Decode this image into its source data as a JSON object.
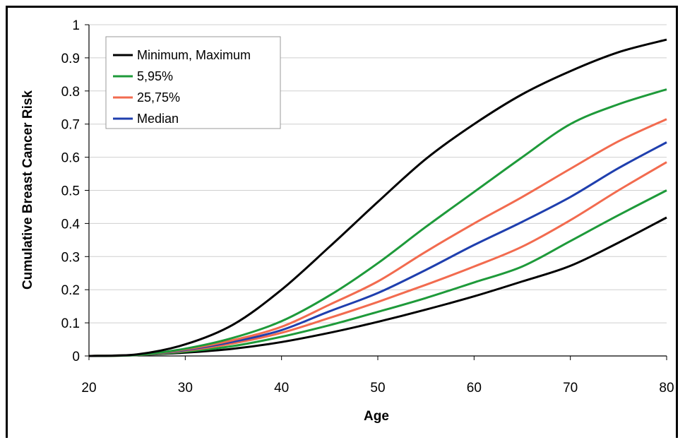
{
  "chart_data": {
    "type": "line",
    "title": "",
    "xlabel": "Age",
    "ylabel": "Cumulative Breast Cancer Risk",
    "xlim": [
      20,
      80
    ],
    "ylim": [
      0,
      1
    ],
    "x_ticks": [
      20,
      30,
      40,
      50,
      60,
      70,
      80
    ],
    "y_ticks": [
      0,
      0.1,
      0.2,
      0.3,
      0.4,
      0.5,
      0.6,
      0.7,
      0.8,
      0.9,
      1
    ],
    "grid": "horizontal",
    "legend_position": "top-left",
    "legend": [
      {
        "label": "Minimum, Maximum",
        "color": "#000000"
      },
      {
        "label": "5,95%",
        "color": "#1e9a3a"
      },
      {
        "label": "25,75%",
        "color": "#f26b4f"
      },
      {
        "label": "Median",
        "color": "#1f3fae"
      }
    ],
    "x": [
      20,
      25,
      30,
      35,
      40,
      45,
      50,
      55,
      60,
      65,
      70,
      75,
      80
    ],
    "series": [
      {
        "group": "Minimum, Maximum",
        "color": "#000000",
        "values": [
          0,
          0.003,
          0.01,
          0.022,
          0.042,
          0.07,
          0.103,
          0.14,
          0.18,
          0.225,
          0.272,
          0.342,
          0.418
        ]
      },
      {
        "group": "5,95%",
        "color": "#1e9a3a",
        "values": [
          0,
          0.003,
          0.013,
          0.03,
          0.058,
          0.093,
          0.133,
          0.175,
          0.222,
          0.27,
          0.347,
          0.425,
          0.5
        ]
      },
      {
        "group": "25,75%",
        "color": "#f26b4f",
        "values": [
          0,
          0.003,
          0.016,
          0.038,
          0.07,
          0.115,
          0.163,
          0.215,
          0.27,
          0.33,
          0.41,
          0.5,
          0.585
        ]
      },
      {
        "group": "Median",
        "color": "#1f3fae",
        "values": [
          0,
          0.003,
          0.018,
          0.043,
          0.078,
          0.135,
          0.19,
          0.26,
          0.335,
          0.405,
          0.48,
          0.567,
          0.645
        ]
      },
      {
        "group": "25,75%",
        "color": "#f26b4f",
        "values": [
          0,
          0.003,
          0.02,
          0.048,
          0.088,
          0.155,
          0.225,
          0.315,
          0.4,
          0.48,
          0.565,
          0.648,
          0.715
        ]
      },
      {
        "group": "5,95%",
        "color": "#1e9a3a",
        "values": [
          0,
          0.003,
          0.022,
          0.055,
          0.105,
          0.183,
          0.28,
          0.39,
          0.495,
          0.6,
          0.7,
          0.76,
          0.805
        ]
      },
      {
        "group": "Minimum, Maximum",
        "color": "#000000",
        "values": [
          0,
          0.005,
          0.035,
          0.095,
          0.2,
          0.33,
          0.465,
          0.595,
          0.7,
          0.79,
          0.86,
          0.917,
          0.955
        ]
      }
    ]
  }
}
